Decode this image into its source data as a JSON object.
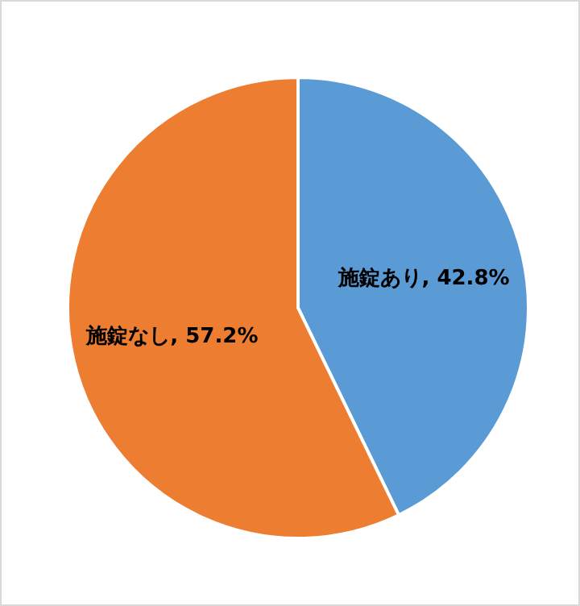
{
  "chart_data": {
    "type": "pie",
    "categories": [
      "施錠あり",
      "施錠なし"
    ],
    "values": [
      42.8,
      57.2
    ],
    "colors": [
      "#5b9bd5",
      "#ed7d31"
    ],
    "value_labels": [
      "42.8%",
      "57.2%"
    ],
    "legend": false
  }
}
